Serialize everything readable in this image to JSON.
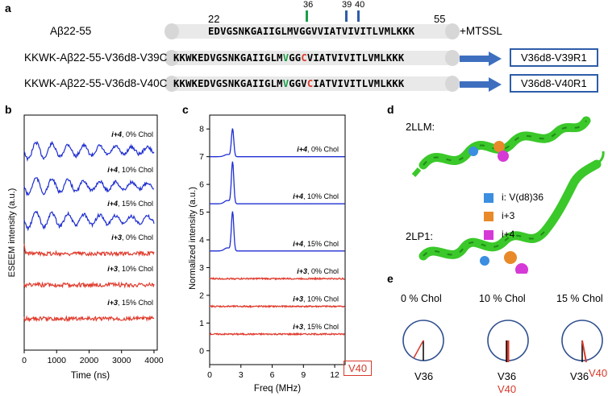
{
  "panels": {
    "a": "a",
    "b": "b",
    "c": "c",
    "d": "d",
    "e": "e"
  },
  "panel_a": {
    "markers": {
      "m36": "36",
      "m39": "39",
      "m40": "40",
      "start": "22",
      "end": "55"
    },
    "rows": [
      {
        "name": "Aβ22-55",
        "seq_pre": "EDVGSNKGAIIGLM",
        "seq_v": "V",
        "seq_mid": "GG",
        "seq_c": "V",
        "seq_post": "VIATVIVITLVMLKKK"
      },
      {
        "name": "KKWK-Aβ22-55-V36d8-V39C",
        "seq_pre": "KKWKEDVGSNKGAIIGLM",
        "seq_v": "V",
        "seq_mid": "GG",
        "seq_c": "C",
        "seq_post": "VIATVIVITLVMLKKK"
      },
      {
        "name": "KKWK-Aβ22-55-V36d8-V40C",
        "seq_pre": "KKWKEDVGSNKGAIIGLM",
        "seq_v": "V",
        "seq_mid": "GGV",
        "seq_c": "C",
        "seq_post": "IATVIVITLVMLKKK"
      }
    ],
    "mtssl": "+MTSSL",
    "products": [
      "V36d8-V39R1",
      "V36d8-V40R1"
    ]
  },
  "panel_d": {
    "labels": [
      "2LLM:",
      "2LP1:"
    ],
    "legend": [
      {
        "label": "i: V(d8)36",
        "color": "#3b8ee0"
      },
      {
        "label": "i+3",
        "color": "#e88a2a"
      },
      {
        "label": "i+4",
        "color": "#d63ad6"
      }
    ]
  },
  "panel_e": {
    "titles": [
      "0 % Chol",
      "10 % Chol",
      "15 % Chol"
    ],
    "v36": "V36",
    "v40": "V40"
  },
  "chart_data": [
    {
      "type": "line",
      "panel": "b",
      "xlabel": "Time (ns)",
      "ylabel": "ESEEM intensity (a.u.)",
      "xlim": [
        0,
        4100
      ],
      "xticks": [
        0,
        1000,
        2000,
        3000,
        4000
      ],
      "series": [
        {
          "name": "i+4, 0% Chol",
          "color": "#1f2fd1"
        },
        {
          "name": "i+4, 10% Chol",
          "color": "#1f2fd1"
        },
        {
          "name": "i+4, 15% Chol",
          "color": "#1f2fd1"
        },
        {
          "name": "i+3, 0% Chol",
          "color": "#e03c2e"
        },
        {
          "name": "i+3, 10% Chol",
          "color": "#e03c2e"
        },
        {
          "name": "i+3, 15% Chol",
          "color": "#e03c2e"
        }
      ]
    },
    {
      "type": "line",
      "panel": "c",
      "xlabel": "Freq (MHz)",
      "ylabel": "Normalized intensity (a.u.)",
      "xlim": [
        0,
        13
      ],
      "ylim": [
        -0.5,
        8.5
      ],
      "xticks": [
        0,
        3,
        6,
        9,
        12
      ],
      "yticks": [
        0,
        1,
        2,
        3,
        4,
        5,
        6,
        7,
        8
      ],
      "peak_freq": 2.2,
      "series": [
        {
          "name": "i+4, 0% Chol",
          "baseline": 7.0,
          "peak": 8.0,
          "color": "#1f2fd1"
        },
        {
          "name": "i+4, 10% Chol",
          "baseline": 5.3,
          "peak": 6.8,
          "color": "#1f2fd1"
        },
        {
          "name": "i+4, 15% Chol",
          "baseline": 3.6,
          "peak": 5.0,
          "color": "#1f2fd1"
        },
        {
          "name": "i+3, 0% Chol",
          "baseline": 2.6,
          "peak": 2.6,
          "color": "#e03c2e"
        },
        {
          "name": "i+3, 10% Chol",
          "baseline": 1.6,
          "peak": 1.6,
          "color": "#e03c2e"
        },
        {
          "name": "i+3, 15% Chol",
          "baseline": 0.6,
          "peak": 0.6,
          "color": "#e03c2e"
        }
      ]
    }
  ]
}
